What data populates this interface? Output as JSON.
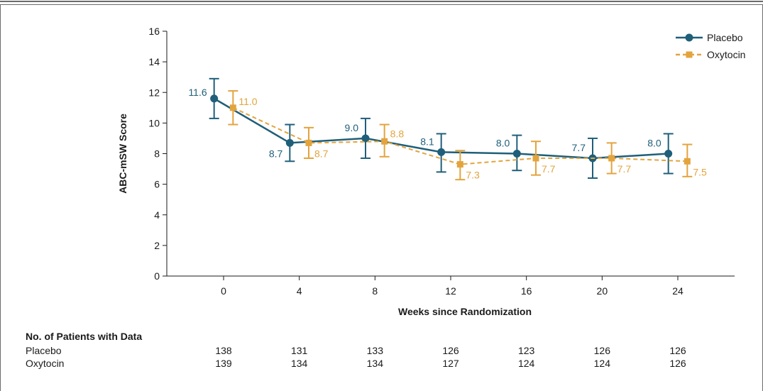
{
  "chart_data": {
    "type": "line",
    "title": "",
    "xlabel": "Weeks since Randomization",
    "ylabel": "ABC-mSW Score",
    "xlim": [
      -3,
      27
    ],
    "ylim": [
      0,
      16
    ],
    "x_ticks": [
      0,
      4,
      8,
      12,
      16,
      20,
      24
    ],
    "y_ticks": [
      0,
      2,
      4,
      6,
      8,
      10,
      12,
      14,
      16
    ],
    "grid": false,
    "legend_position": "top-right",
    "error_bars": true,
    "series": [
      {
        "name": "Placebo",
        "color": "#1f5f7a",
        "marker": "circle",
        "line_style": "solid",
        "x": [
          -0.5,
          3.5,
          7.5,
          11.5,
          15.5,
          19.5,
          23.5
        ],
        "values": [
          11.6,
          8.7,
          9.0,
          8.1,
          8.0,
          7.7,
          8.0
        ],
        "labels": [
          "11.6",
          "8.7",
          "9.0",
          "8.1",
          "8.0",
          "7.7",
          "8.0"
        ],
        "error_low": [
          10.3,
          7.5,
          7.7,
          6.8,
          6.9,
          6.4,
          6.7
        ],
        "error_high": [
          12.9,
          9.9,
          10.3,
          9.3,
          9.2,
          9.0,
          9.3
        ]
      },
      {
        "name": "Oxytocin",
        "color": "#e3a43d",
        "marker": "square",
        "line_style": "dashed",
        "x": [
          0.5,
          4.5,
          8.5,
          12.5,
          16.5,
          20.5,
          24.5
        ],
        "values": [
          11.0,
          8.7,
          8.8,
          7.3,
          7.7,
          7.7,
          7.5
        ],
        "labels": [
          "11.0",
          "8.7",
          "8.8",
          "7.3",
          "7.7",
          "7.7",
          "7.5"
        ],
        "error_low": [
          9.9,
          7.7,
          7.8,
          6.3,
          6.6,
          6.7,
          6.5
        ],
        "error_high": [
          12.1,
          9.7,
          9.9,
          8.2,
          8.8,
          8.7,
          8.6
        ]
      }
    ]
  },
  "patients_table": {
    "title": "No. of Patients with Data",
    "weeks": [
      0,
      4,
      8,
      12,
      16,
      20,
      24
    ],
    "rows": [
      {
        "label": "Placebo",
        "values": [
          "138",
          "131",
          "133",
          "126",
          "123",
          "126",
          "126"
        ]
      },
      {
        "label": "Oxytocin",
        "values": [
          "139",
          "134",
          "134",
          "127",
          "124",
          "124",
          "126"
        ]
      }
    ]
  }
}
